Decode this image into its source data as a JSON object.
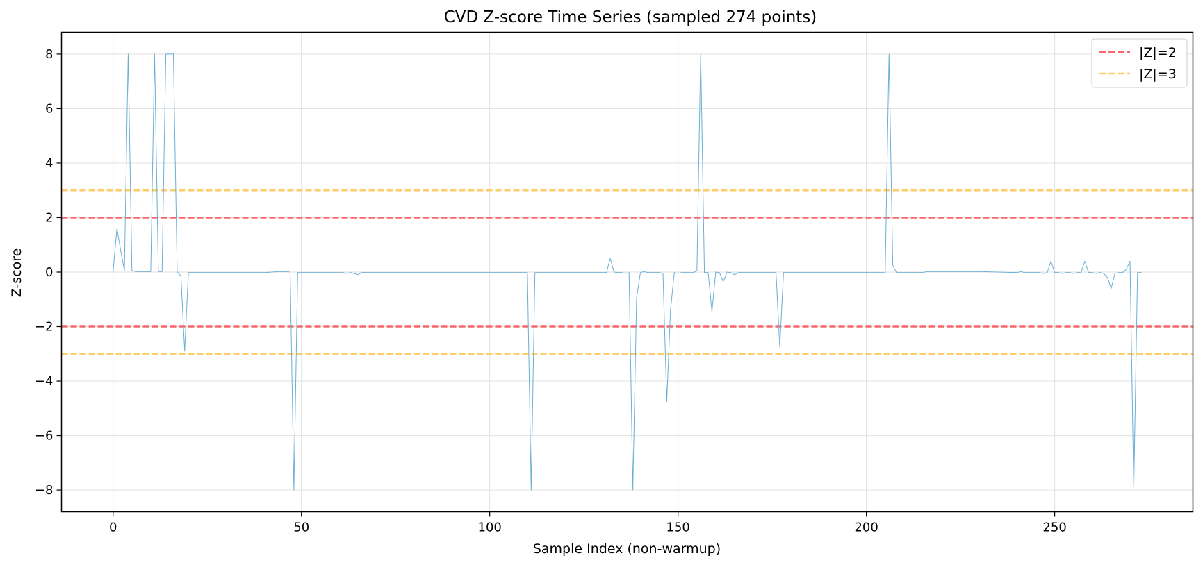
{
  "chart_data": {
    "type": "line",
    "title": "CVD Z-score Time Series (sampled 274 points)",
    "xlabel": "Sample Index (non-warmup)",
    "ylabel": "Z-score",
    "xlim": [
      -13.7,
      286.7
    ],
    "ylim": [
      -8.8,
      8.8
    ],
    "xticks": [
      0,
      50,
      100,
      150,
      200,
      250
    ],
    "yticks": [
      -8,
      -6,
      -4,
      -2,
      0,
      2,
      4,
      6,
      8
    ],
    "xtick_labels": [
      "0",
      "50",
      "100",
      "150",
      "200",
      "250"
    ],
    "ytick_labels": [
      "−8",
      "−6",
      "−4",
      "−2",
      "0",
      "2",
      "4",
      "6",
      "8"
    ],
    "grid": true,
    "legend_position": "top-right",
    "series": [
      {
        "color": "#6baed6",
        "points": [
          [
            0,
            0
          ],
          [
            1,
            1.6
          ],
          [
            2,
            0.8
          ],
          [
            3,
            0.05
          ],
          [
            4,
            8
          ],
          [
            5,
            0.05
          ],
          [
            6,
            0.02
          ],
          [
            7,
            0.02
          ],
          [
            8,
            0.02
          ],
          [
            9,
            0.02
          ],
          [
            10,
            0.02
          ],
          [
            11,
            8
          ],
          [
            12,
            0.02
          ],
          [
            13,
            0.02
          ],
          [
            14,
            8
          ],
          [
            15,
            8
          ],
          [
            16,
            8
          ],
          [
            17,
            0.02
          ],
          [
            18,
            -0.15
          ],
          [
            19,
            -2.9
          ],
          [
            20,
            -0.02
          ],
          [
            21,
            -0.02
          ],
          [
            30,
            -0.02
          ],
          [
            40,
            -0.02
          ],
          [
            44,
            0.02
          ],
          [
            46,
            0.02
          ],
          [
            47,
            0
          ],
          [
            48,
            -8
          ],
          [
            49,
            -0.02
          ],
          [
            50,
            -0.02
          ],
          [
            60,
            -0.02
          ],
          [
            61,
            -0.02
          ],
          [
            62,
            -0.05
          ],
          [
            63,
            -0.02
          ],
          [
            64,
            -0.05
          ],
          [
            65,
            -0.1
          ],
          [
            66,
            -0.02
          ],
          [
            80,
            -0.02
          ],
          [
            100,
            -0.02
          ],
          [
            110,
            -0.02
          ],
          [
            111,
            -8
          ],
          [
            112,
            -0.02
          ],
          [
            120,
            -0.02
          ],
          [
            130,
            -0.02
          ],
          [
            131,
            -0.02
          ],
          [
            132,
            0.5
          ],
          [
            133,
            0
          ],
          [
            134,
            -0.02
          ],
          [
            135,
            -0.02
          ],
          [
            136,
            -0.05
          ],
          [
            137,
            -0.02
          ],
          [
            138,
            -8
          ],
          [
            139,
            -0.95
          ],
          [
            140,
            -0.02
          ],
          [
            141,
            0.02
          ],
          [
            142,
            -0.02
          ],
          [
            143,
            -0.02
          ],
          [
            144,
            -0.02
          ],
          [
            145,
            -0.02
          ],
          [
            146,
            -0.05
          ],
          [
            147,
            -4.75
          ],
          [
            148,
            -1.4
          ],
          [
            149,
            -0.02
          ],
          [
            150,
            -0.05
          ],
          [
            151,
            -0.02
          ],
          [
            152,
            -0.02
          ],
          [
            153,
            -0.02
          ],
          [
            154,
            -0.02
          ],
          [
            155,
            0.05
          ],
          [
            156,
            8
          ],
          [
            157,
            -0.02
          ],
          [
            158,
            -0.02
          ],
          [
            159,
            -1.45
          ],
          [
            160,
            0
          ],
          [
            161,
            -0.02
          ],
          [
            162,
            -0.35
          ],
          [
            163,
            0
          ],
          [
            164,
            -0.02
          ],
          [
            165,
            -0.1
          ],
          [
            166,
            -0.02
          ],
          [
            167,
            -0.02
          ],
          [
            170,
            -0.02
          ],
          [
            175,
            -0.02
          ],
          [
            176,
            -0.02
          ],
          [
            177,
            -2.75
          ],
          [
            178,
            -0.02
          ],
          [
            190,
            -0.02
          ],
          [
            200,
            -0.02
          ],
          [
            205,
            -0.02
          ],
          [
            206,
            8
          ],
          [
            207,
            0.25
          ],
          [
            208,
            -0.02
          ],
          [
            210,
            -0.02
          ],
          [
            215,
            -0.02
          ],
          [
            216,
            0.02
          ],
          [
            220,
            0.02
          ],
          [
            230,
            0.02
          ],
          [
            240,
            -0.02
          ],
          [
            241,
            0.02
          ],
          [
            242,
            -0.02
          ],
          [
            246,
            -0.02
          ],
          [
            247,
            -0.05
          ],
          [
            248,
            -0.02
          ],
          [
            249,
            0.4
          ],
          [
            250,
            -0.02
          ],
          [
            251,
            -0.02
          ],
          [
            252,
            -0.05
          ],
          [
            253,
            -0.02
          ],
          [
            254,
            -0.02
          ],
          [
            255,
            -0.05
          ],
          [
            256,
            -0.02
          ],
          [
            257,
            -0.02
          ],
          [
            258,
            0.4
          ],
          [
            259,
            -0.02
          ],
          [
            260,
            -0.02
          ],
          [
            261,
            -0.05
          ],
          [
            262,
            -0.02
          ],
          [
            263,
            -0.05
          ],
          [
            264,
            -0.2
          ],
          [
            265,
            -0.6
          ],
          [
            266,
            -0.05
          ],
          [
            267,
            -0.02
          ],
          [
            268,
            -0.02
          ],
          [
            269,
            0.1
          ],
          [
            270,
            0.4
          ],
          [
            271,
            -8
          ],
          [
            272,
            -0.02
          ],
          [
            273,
            -0.02
          ]
        ]
      }
    ],
    "reference_lines": [
      {
        "label": "|Z|=2",
        "values": [
          2,
          -2
        ],
        "color": "#f8666a",
        "style": "dashed"
      },
      {
        "label": "|Z|=3",
        "values": [
          3,
          -3
        ],
        "color": "#fdcd6a",
        "style": "dashed"
      }
    ]
  }
}
